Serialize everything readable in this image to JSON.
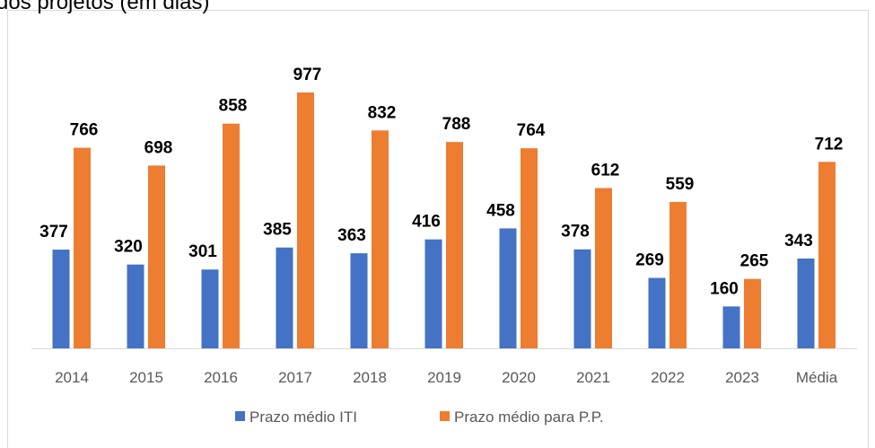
{
  "chart_data": {
    "type": "bar",
    "title": "dos projetos (em dias)",
    "categories": [
      "2014",
      "2015",
      "2016",
      "2017",
      "2018",
      "2019",
      "2020",
      "2021",
      "2022",
      "2023",
      "Média"
    ],
    "series": [
      {
        "name": "Prazo médio ITI",
        "color": "#4472c4",
        "values": [
          377,
          320,
          301,
          385,
          363,
          416,
          458,
          378,
          269,
          160,
          343
        ]
      },
      {
        "name": "Prazo médio para P.P.",
        "color": "#ed7d31",
        "values": [
          766,
          698,
          858,
          977,
          832,
          788,
          764,
          612,
          559,
          265,
          712
        ]
      }
    ],
    "legend": "bottom"
  }
}
